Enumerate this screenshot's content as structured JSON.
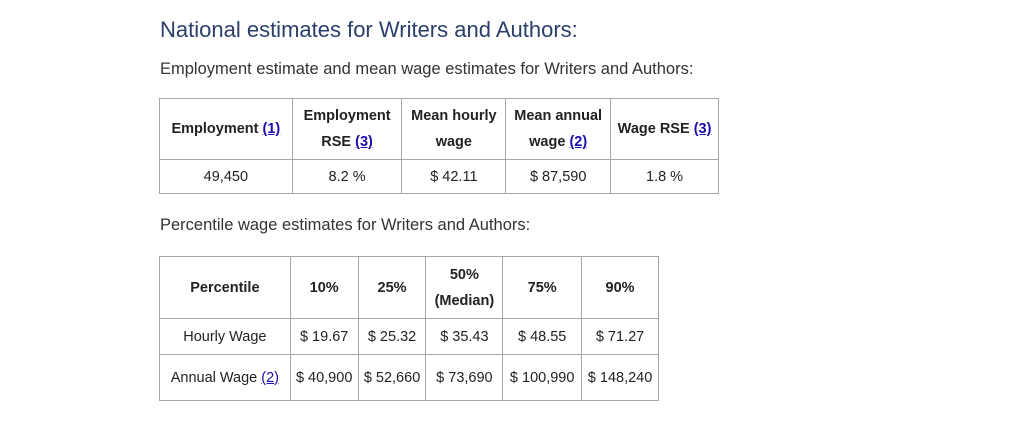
{
  "heading": "National estimates for Writers and Authors:",
  "employment_caption": "Employment estimate and mean wage estimates for Writers and Authors:",
  "employment_table": {
    "headers": {
      "employment": "Employment",
      "employment_ref": "(1)",
      "rse_l1": "Employment",
      "rse_l2": "RSE",
      "rse_ref": "(3)",
      "hourly_l1": "Mean hourly",
      "hourly_l2": "wage",
      "annual_l1": "Mean annual",
      "annual_l2": "wage",
      "annual_ref": "(2)",
      "wage_rse": "Wage RSE",
      "wage_rse_ref": "(3)"
    },
    "row": {
      "employment": "49,450",
      "employment_rse": "8.2 %",
      "mean_hourly": "$ 42.11",
      "mean_annual": "$ 87,590",
      "wage_rse": "1.8 %"
    }
  },
  "percentile_caption": "Percentile wage estimates for Writers and Authors:",
  "percentile_table": {
    "headers": {
      "percentile": "Percentile",
      "p10": "10%",
      "p25": "25%",
      "p50_l1": "50%",
      "p50_l2": "(Median)",
      "p75": "75%",
      "p90": "90%"
    },
    "hourly": {
      "label": "Hourly Wage",
      "values": [
        "$ 19.67",
        "$ 25.32",
        "$ 35.43",
        "$ 48.55",
        "$ 71.27"
      ]
    },
    "annual": {
      "label": "Annual Wage",
      "ref": "(2)",
      "values": [
        "$ 40,900",
        "$ 52,660",
        "$ 73,690",
        "$ 100,990",
        "$ 148,240"
      ]
    }
  }
}
